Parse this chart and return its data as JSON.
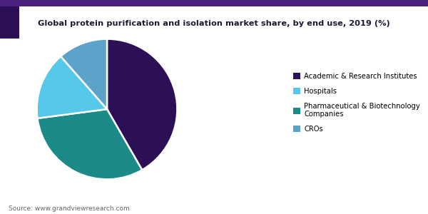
{
  "title": "Global protein purification and isolation market share, by end use, 2019 (%)",
  "values": [
    40,
    30,
    15,
    11
  ],
  "colors": [
    "#2b1055",
    "#1d8a8a",
    "#56c8ea",
    "#5ba3c9"
  ],
  "legend_labels": [
    "Academic & Research Institutes",
    "Hospitals",
    "Pharmaceutical & Biotechnology\nCompanies",
    "CROs"
  ],
  "legend_colors": [
    "#2b1055",
    "#56c8ea",
    "#1d8a8a",
    "#5ba3c9"
  ],
  "source": "Source: www.grandviewresearch.com",
  "background_color": "#ffffff",
  "title_color": "#1a1a2e",
  "header_line_color": "#4a2080",
  "accent_color": "#2b1055",
  "startangle": 90
}
